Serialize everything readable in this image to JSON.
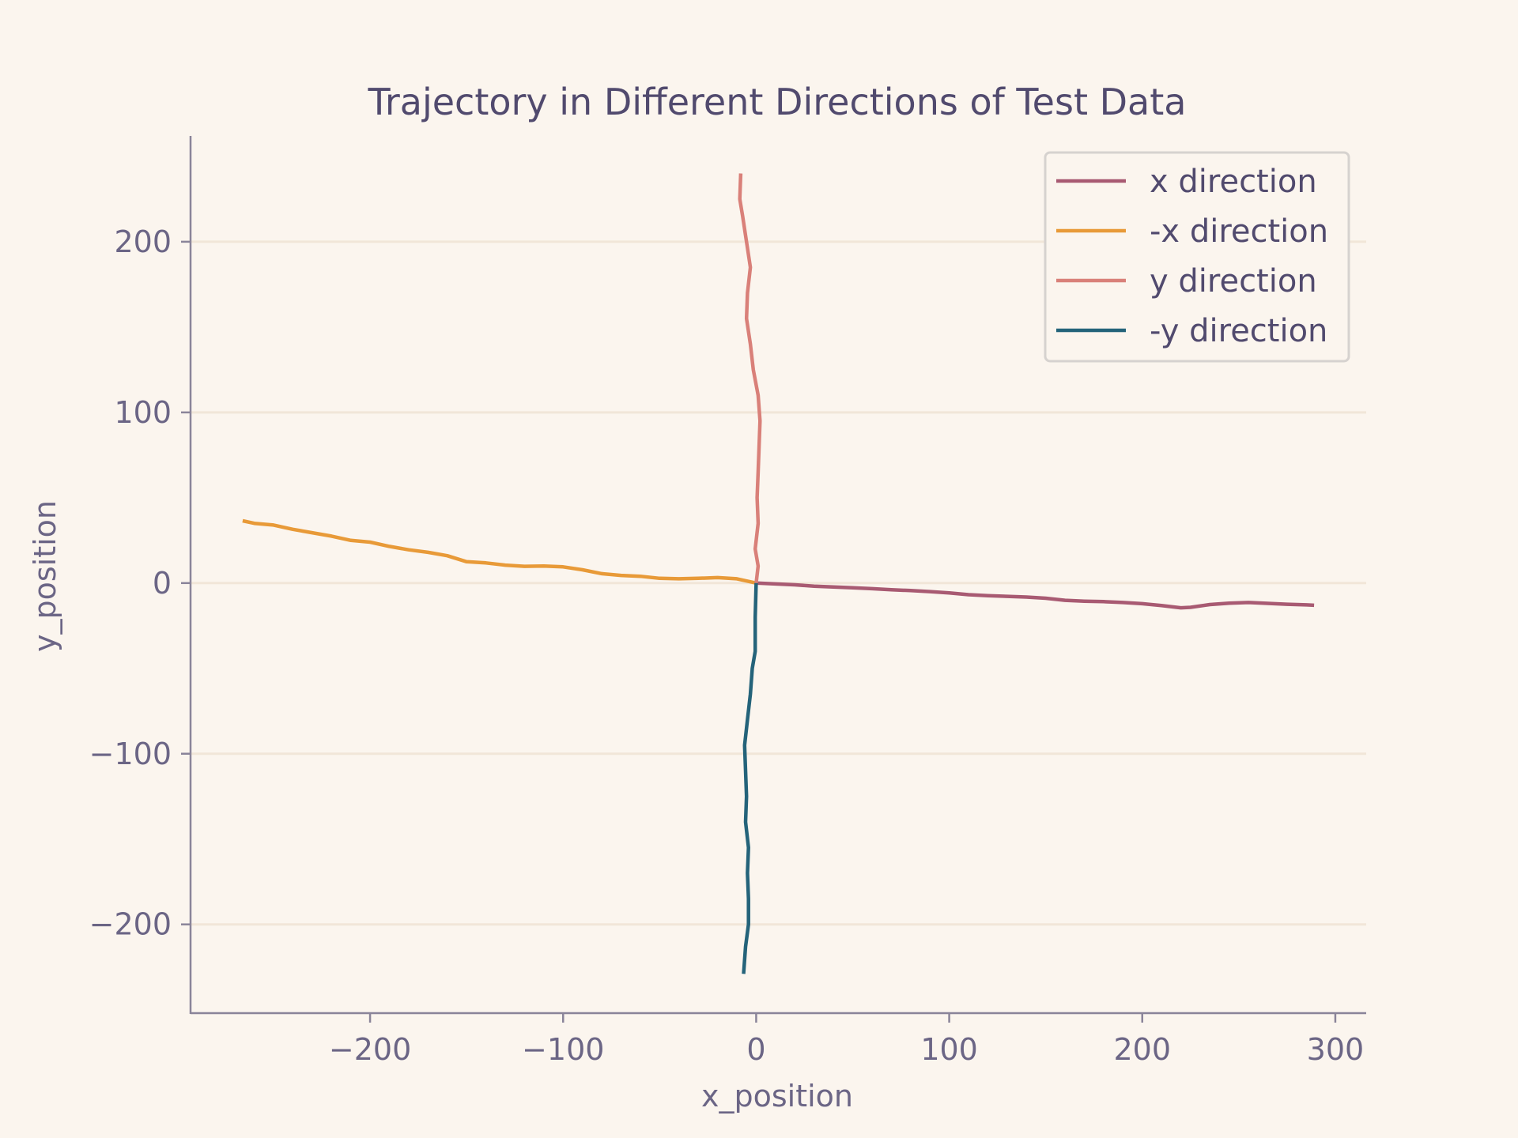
{
  "chart_data": {
    "type": "line",
    "title": "Trajectory in Different Directions of Test Data",
    "xlabel": "x_position",
    "ylabel": "y_position",
    "xlim": [
      -293,
      316
    ],
    "ylim": [
      -252,
      262
    ],
    "xticks": [
      -200,
      -100,
      0,
      100,
      200,
      300
    ],
    "yticks": [
      -200,
      -100,
      0,
      100,
      200
    ],
    "xtick_labels": [
      "−200",
      "−100",
      "0",
      "100",
      "200",
      "300"
    ],
    "ytick_labels": [
      "−200",
      "−100",
      "0",
      "100",
      "200"
    ],
    "grid": "horizontal",
    "legend_position": "top-right",
    "series": [
      {
        "name": "x direction",
        "color": "#a85a72",
        "points": [
          [
            0,
            0
          ],
          [
            10,
            -0.5
          ],
          [
            20,
            -1
          ],
          [
            30,
            -1.8
          ],
          [
            40,
            -2.3
          ],
          [
            50,
            -2.8
          ],
          [
            60,
            -3.3
          ],
          [
            70,
            -3.9
          ],
          [
            80,
            -4.4
          ],
          [
            90,
            -5
          ],
          [
            100,
            -5.8
          ],
          [
            110,
            -6.8
          ],
          [
            120,
            -7.4
          ],
          [
            130,
            -7.8
          ],
          [
            140,
            -8.2
          ],
          [
            150,
            -8.9
          ],
          [
            160,
            -10.1
          ],
          [
            170,
            -10.6
          ],
          [
            180,
            -10.9
          ],
          [
            190,
            -11.4
          ],
          [
            200,
            -12.1
          ],
          [
            210,
            -13.2
          ],
          [
            220,
            -14.5
          ],
          [
            225,
            -14.2
          ],
          [
            235,
            -12.6
          ],
          [
            245,
            -11.8
          ],
          [
            255,
            -11.4
          ],
          [
            265,
            -11.9
          ],
          [
            275,
            -12.4
          ],
          [
            285,
            -12.8
          ],
          [
            289,
            -13
          ]
        ]
      },
      {
        "name": "-x direction",
        "color": "#e89a38",
        "points": [
          [
            0,
            0
          ],
          [
            -10,
            2.5
          ],
          [
            -20,
            3.2
          ],
          [
            -30,
            2.8
          ],
          [
            -40,
            2.5
          ],
          [
            -50,
            2.8
          ],
          [
            -60,
            4
          ],
          [
            -70,
            4.5
          ],
          [
            -80,
            5.5
          ],
          [
            -90,
            7.8
          ],
          [
            -100,
            9.5
          ],
          [
            -110,
            10
          ],
          [
            -120,
            9.8
          ],
          [
            -130,
            10.5
          ],
          [
            -140,
            11.8
          ],
          [
            -150,
            12.5
          ],
          [
            -160,
            16
          ],
          [
            -170,
            18
          ],
          [
            -180,
            19.5
          ],
          [
            -190,
            21.5
          ],
          [
            -200,
            24
          ],
          [
            -210,
            25
          ],
          [
            -220,
            27.5
          ],
          [
            -230,
            29.5
          ],
          [
            -240,
            31.5
          ],
          [
            -250,
            34
          ],
          [
            -260,
            35
          ],
          [
            -266,
            36.5
          ]
        ]
      },
      {
        "name": "y direction",
        "color": "#d98079",
        "points": [
          [
            0,
            0
          ],
          [
            1,
            10
          ],
          [
            -0.5,
            20
          ],
          [
            1,
            35
          ],
          [
            0.5,
            50
          ],
          [
            1,
            65
          ],
          [
            1.5,
            80
          ],
          [
            2,
            95
          ],
          [
            1,
            110
          ],
          [
            -1.5,
            125
          ],
          [
            -3,
            140
          ],
          [
            -5,
            155
          ],
          [
            -4.5,
            170
          ],
          [
            -3,
            185
          ],
          [
            -5,
            200
          ],
          [
            -7,
            215
          ],
          [
            -8.5,
            225
          ],
          [
            -8,
            240
          ]
        ]
      },
      {
        "name": "-y direction",
        "color": "#24637a",
        "points": [
          [
            0,
            0
          ],
          [
            -0.5,
            -20
          ],
          [
            -0.5,
            -40
          ],
          [
            -2,
            -50
          ],
          [
            -3,
            -65
          ],
          [
            -4.5,
            -80
          ],
          [
            -6,
            -95
          ],
          [
            -5.5,
            -110
          ],
          [
            -5,
            -125
          ],
          [
            -5.5,
            -140
          ],
          [
            -4,
            -155
          ],
          [
            -4.5,
            -170
          ],
          [
            -4,
            -185
          ],
          [
            -4,
            -200
          ],
          [
            -5.5,
            -213
          ],
          [
            -6.5,
            -229
          ]
        ]
      }
    ]
  }
}
